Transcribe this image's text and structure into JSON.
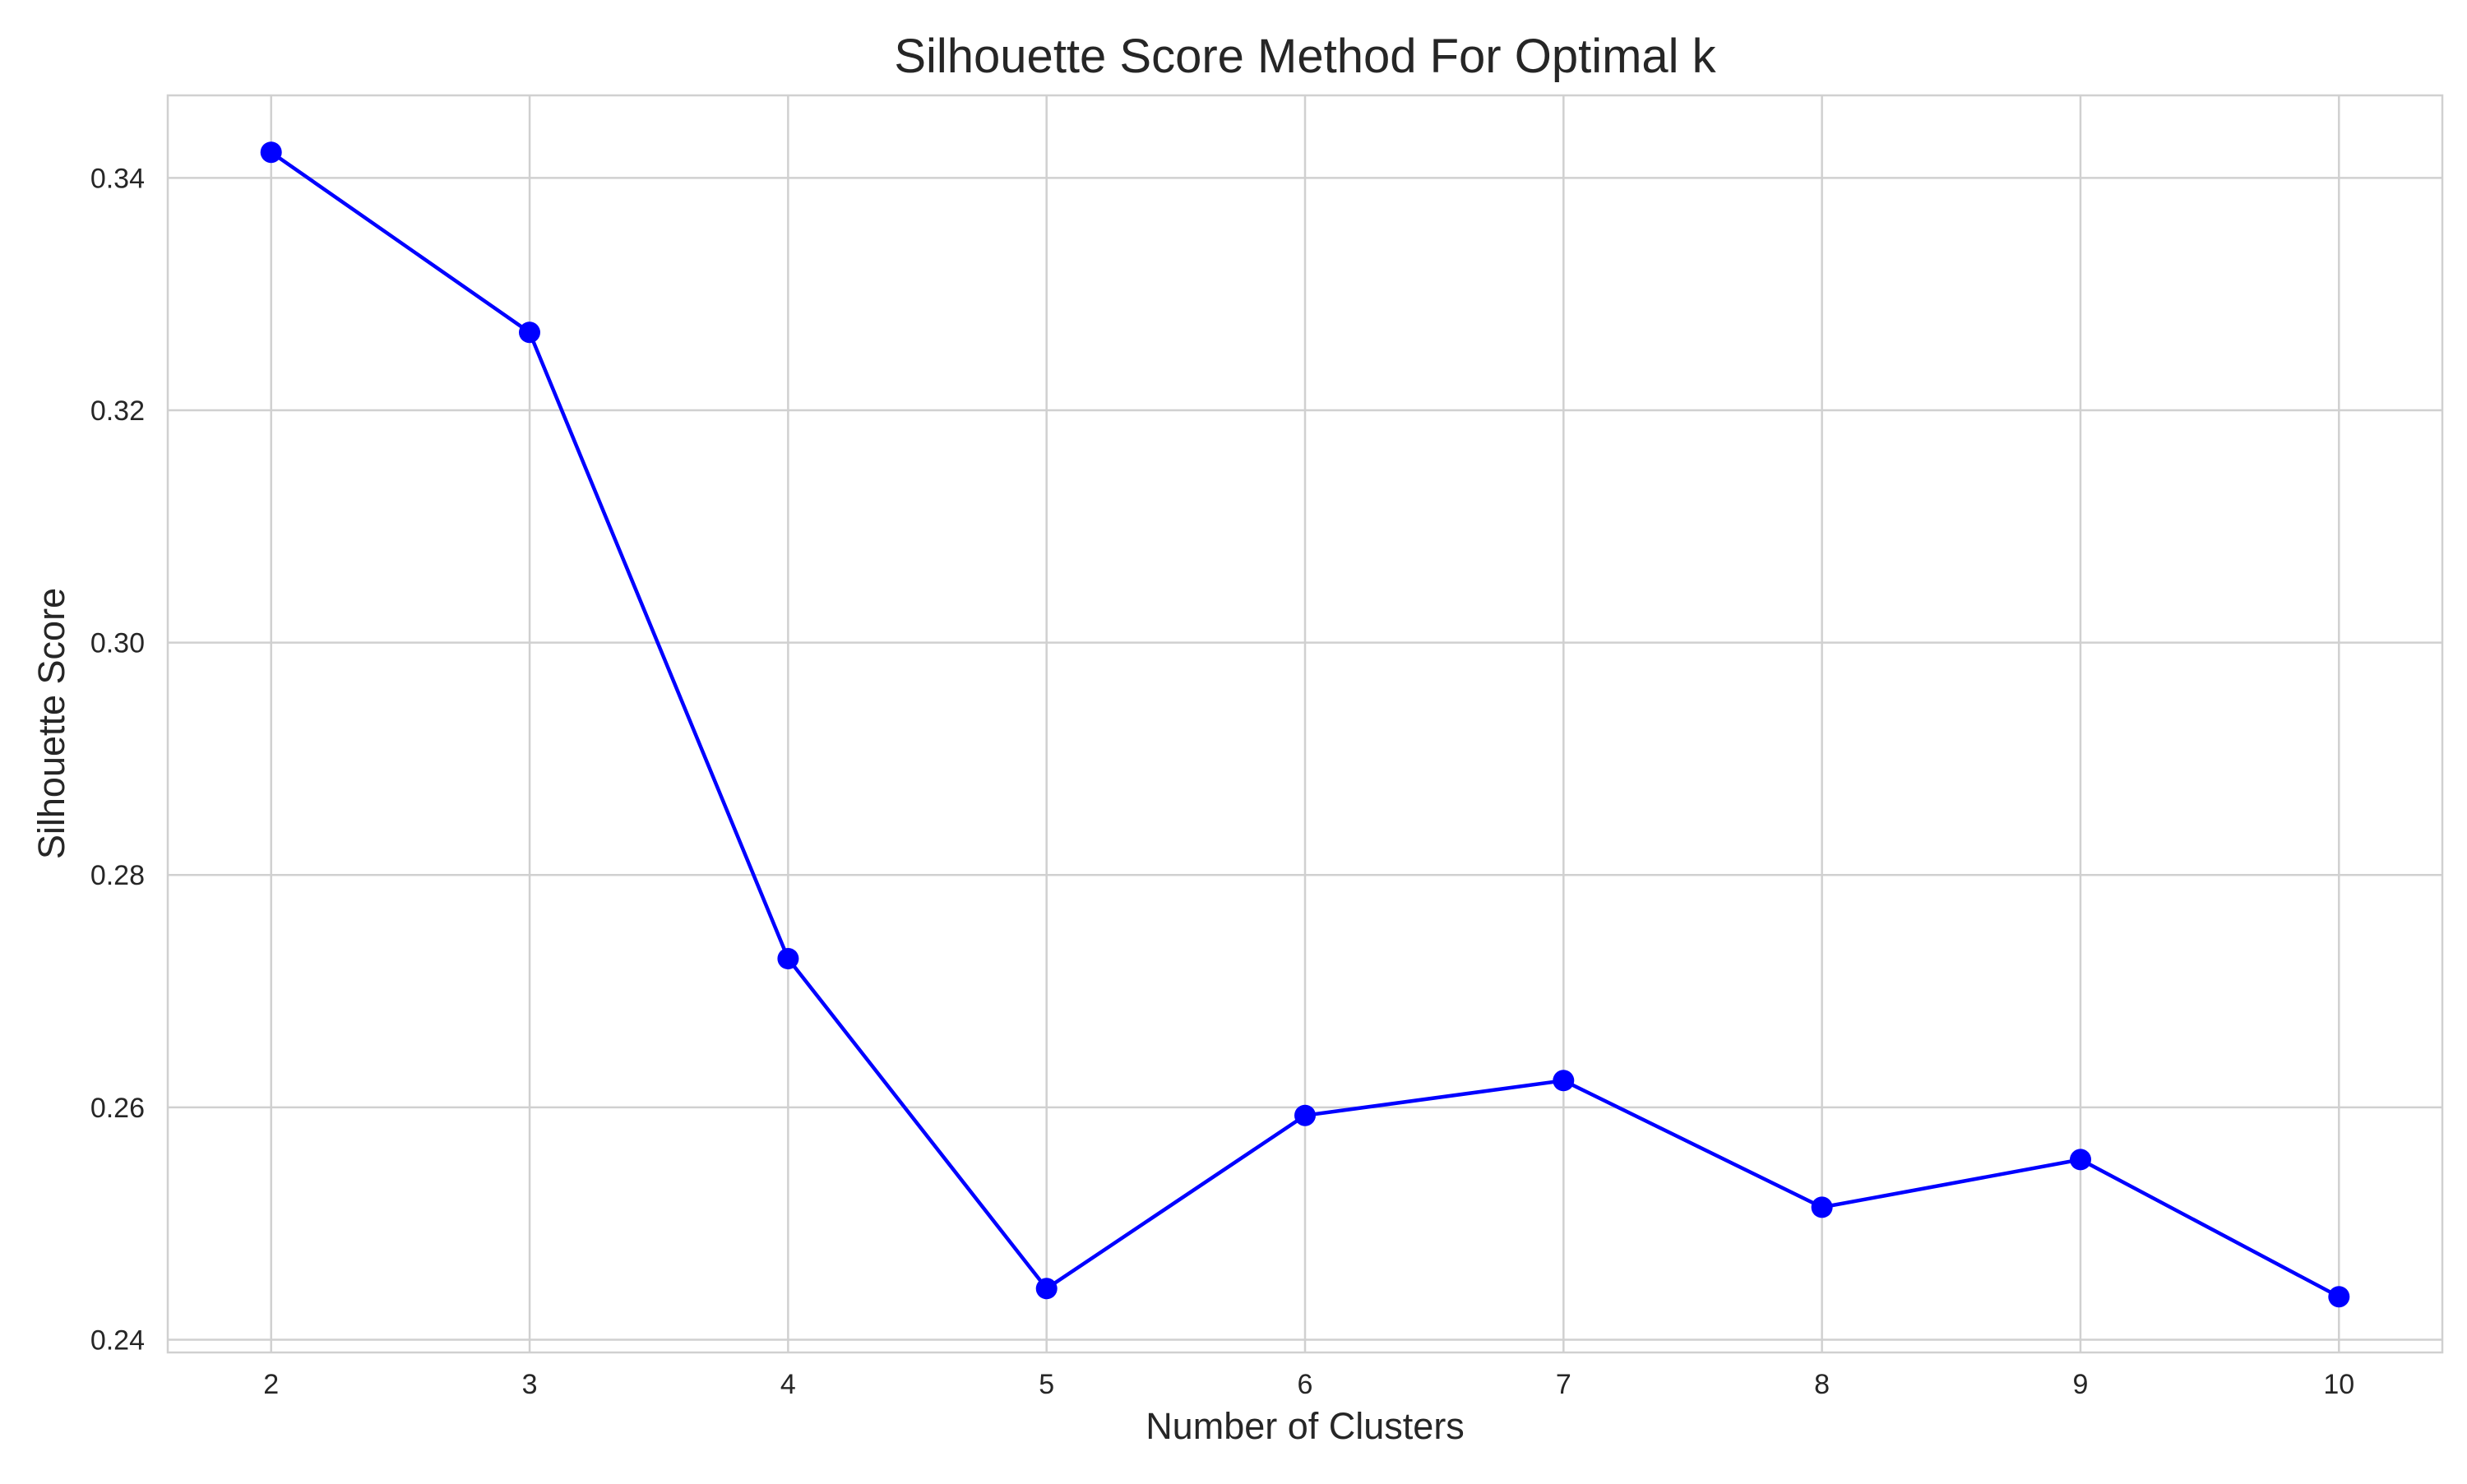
{
  "chart_data": {
    "type": "line",
    "title": "Silhouette Score Method For Optimal k",
    "xlabel": "Number of Clusters",
    "ylabel": "Silhouette Score",
    "x": [
      2,
      3,
      4,
      5,
      6,
      7,
      8,
      9,
      10
    ],
    "series": [
      {
        "values": [
          0.3422,
          0.3267,
          0.2728,
          0.2444,
          0.2593,
          0.2623,
          0.2514,
          0.2555,
          0.2437
        ],
        "color": "#0000ff",
        "marker": "circle"
      }
    ],
    "xticks": [
      "2",
      "3",
      "4",
      "5",
      "6",
      "7",
      "8",
      "9",
      "10"
    ],
    "yticks": [
      "0.24",
      "0.26",
      "0.28",
      "0.30",
      "0.32",
      "0.34"
    ],
    "xlim": [
      1.6,
      10.4
    ],
    "ylim": [
      0.2389,
      0.3471
    ],
    "grid": true,
    "legend": "none"
  }
}
